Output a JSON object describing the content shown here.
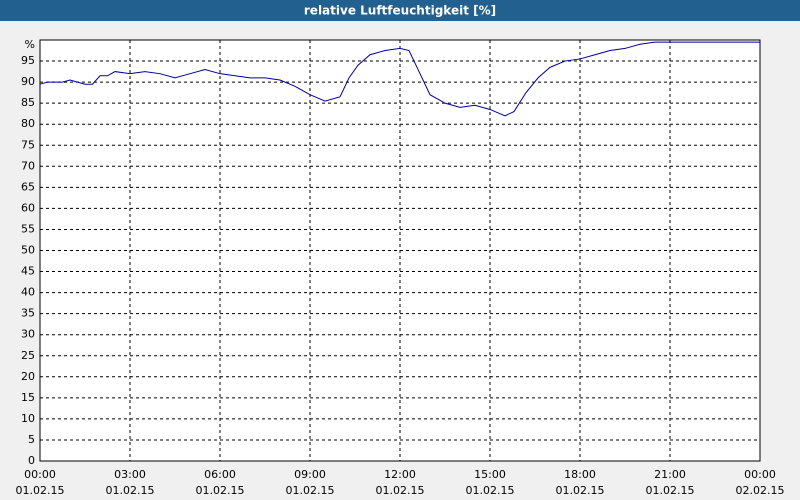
{
  "chart_data": {
    "type": "line",
    "title": "relative Luftfeuchtigkeit [%]",
    "y_unit": "%",
    "x": [
      0,
      0.25,
      0.5,
      0.75,
      1.0,
      1.25,
      1.5,
      1.75,
      2.0,
      2.25,
      2.5,
      3.0,
      3.5,
      4.0,
      4.5,
      5.0,
      5.5,
      6.0,
      6.5,
      7.0,
      7.5,
      8.0,
      8.5,
      9.0,
      9.5,
      10.0,
      10.3,
      10.6,
      11.0,
      11.5,
      12.0,
      12.3,
      12.6,
      13.0,
      13.5,
      14.0,
      14.5,
      15.0,
      15.5,
      15.8,
      16.2,
      16.6,
      17.0,
      17.5,
      18.0,
      18.5,
      19.0,
      19.5,
      20.0,
      20.5,
      21.0,
      22.0,
      23.0,
      24.0
    ],
    "series": [
      {
        "name": "relative Luftfeuchtigkeit",
        "color": "#0000a0",
        "values": [
          89.5,
          90,
          90,
          90,
          90.5,
          90,
          89.5,
          89.5,
          91.5,
          91.5,
          92.5,
          92,
          92.5,
          92,
          91,
          92,
          93,
          92,
          91.5,
          91,
          91,
          90.5,
          89,
          87,
          85.5,
          86.5,
          91,
          94,
          96.5,
          97.5,
          98,
          97.5,
          93,
          87,
          85,
          84,
          84.5,
          83.5,
          82,
          83,
          87.5,
          91,
          93.5,
          95,
          95.5,
          96.5,
          97.5,
          98,
          99,
          99.5,
          99.5,
          99.5,
          99.5,
          99.5
        ]
      }
    ],
    "xlim": [
      0,
      24
    ],
    "xticks": [
      {
        "value": 0,
        "label": "00:00",
        "date": "01.02.15"
      },
      {
        "value": 3,
        "label": "03:00",
        "date": "01.02.15"
      },
      {
        "value": 6,
        "label": "06:00",
        "date": "01.02.15"
      },
      {
        "value": 9,
        "label": "09:00",
        "date": "01.02.15"
      },
      {
        "value": 12,
        "label": "12:00",
        "date": "01.02.15"
      },
      {
        "value": 15,
        "label": "15:00",
        "date": "01.02.15"
      },
      {
        "value": 18,
        "label": "18:00",
        "date": "01.02.15"
      },
      {
        "value": 21,
        "label": "21:00",
        "date": "01.02.15"
      },
      {
        "value": 24,
        "label": "00:00",
        "date": "02.02.15"
      }
    ],
    "ylim": [
      0,
      100
    ],
    "yticks": [
      0,
      5,
      10,
      15,
      20,
      25,
      30,
      35,
      40,
      45,
      50,
      55,
      60,
      65,
      70,
      75,
      80,
      85,
      90,
      95
    ],
    "grid": true
  }
}
